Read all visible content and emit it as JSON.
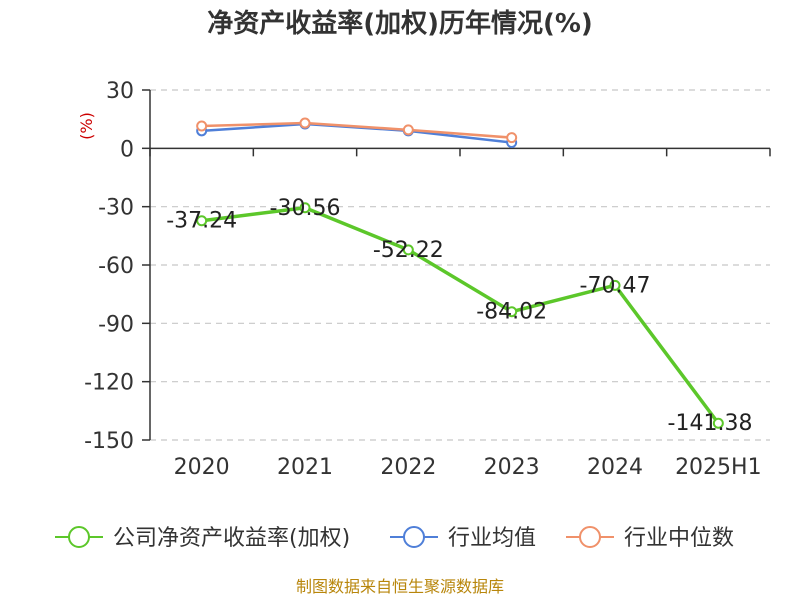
{
  "chart_data": {
    "type": "line",
    "title": "净资产收益率(加权)历年情况(%)",
    "unit_label": "(%)",
    "categories": [
      "2020",
      "2021",
      "2022",
      "2023",
      "2024",
      "2025H1"
    ],
    "yticks": [
      30,
      0,
      -30,
      -60,
      -90,
      -120,
      -150
    ],
    "ylim": [
      -150,
      30
    ],
    "grid": true,
    "legend_position": "bottom",
    "series": [
      {
        "name": "公司净资产收益率(加权)",
        "color": "#5cc72a",
        "values": [
          -37.24,
          -30.56,
          -52.22,
          -84.02,
          -70.47,
          -141.38
        ],
        "labels": [
          "-37.24",
          "-30.56",
          "-52.22",
          "-84.02",
          "-70.47",
          "-141.38"
        ]
      },
      {
        "name": "行业均值",
        "color": "#4f7fd8",
        "values": [
          9.0,
          12.5,
          9.0,
          3.0,
          null,
          null
        ]
      },
      {
        "name": "行业中位数",
        "color": "#f0916a",
        "values": [
          11.5,
          13.0,
          9.5,
          5.5,
          null,
          null
        ]
      }
    ],
    "source": "制图数据来自恒生聚源数据库"
  }
}
